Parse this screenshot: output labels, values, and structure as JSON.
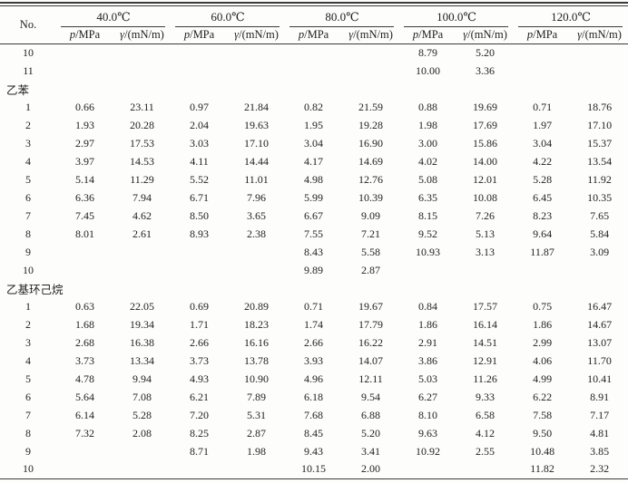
{
  "page": {
    "background": "#fdfdfc",
    "text_color": "#1f1f1f",
    "rule_color": "#3b3b3b"
  },
  "table": {
    "no_header": "No.",
    "temp_groups": [
      "40.0℃",
      "60.0℃",
      "80.0℃",
      "100.0℃",
      "120.0℃"
    ],
    "sub_labels": {
      "p_symbol": "p",
      "p_unit": "/MPa",
      "gamma_symbol": "γ",
      "gamma_unit": "/(mN/m)"
    },
    "rows": [
      {
        "type": "data",
        "no": "10",
        "values": [
          "",
          "",
          "",
          "",
          "",
          "",
          "8.79",
          "5.20",
          "",
          ""
        ]
      },
      {
        "type": "data",
        "no": "11",
        "values": [
          "",
          "",
          "",
          "",
          "",
          "",
          "10.00",
          "3.36",
          "",
          ""
        ]
      },
      {
        "type": "section",
        "label": "乙苯"
      },
      {
        "type": "data",
        "no": "1",
        "values": [
          "0.66",
          "23.11",
          "0.97",
          "21.84",
          "0.82",
          "21.59",
          "0.88",
          "19.69",
          "0.71",
          "18.76"
        ]
      },
      {
        "type": "data",
        "no": "2",
        "values": [
          "1.93",
          "20.28",
          "2.04",
          "19.63",
          "1.95",
          "19.28",
          "1.98",
          "17.69",
          "1.97",
          "17.10"
        ]
      },
      {
        "type": "data",
        "no": "3",
        "values": [
          "2.97",
          "17.53",
          "3.03",
          "17.10",
          "3.04",
          "16.90",
          "3.00",
          "15.86",
          "3.04",
          "15.37"
        ]
      },
      {
        "type": "data",
        "no": "4",
        "values": [
          "3.97",
          "14.53",
          "4.11",
          "14.44",
          "4.17",
          "14.69",
          "4.02",
          "14.00",
          "4.22",
          "13.54"
        ]
      },
      {
        "type": "data",
        "no": "5",
        "values": [
          "5.14",
          "11.29",
          "5.52",
          "11.01",
          "4.98",
          "12.76",
          "5.08",
          "12.01",
          "5.28",
          "11.92"
        ]
      },
      {
        "type": "data",
        "no": "6",
        "values": [
          "6.36",
          "7.94",
          "6.71",
          "7.96",
          "5.99",
          "10.39",
          "6.35",
          "10.08",
          "6.45",
          "10.35"
        ]
      },
      {
        "type": "data",
        "no": "7",
        "values": [
          "7.45",
          "4.62",
          "8.50",
          "3.65",
          "6.67",
          "9.09",
          "8.15",
          "7.26",
          "8.23",
          "7.65"
        ]
      },
      {
        "type": "data",
        "no": "8",
        "values": [
          "8.01",
          "2.61",
          "8.93",
          "2.38",
          "7.55",
          "7.21",
          "9.52",
          "5.13",
          "9.64",
          "5.84"
        ]
      },
      {
        "type": "data",
        "no": "9",
        "values": [
          "",
          "",
          "",
          "",
          "8.43",
          "5.58",
          "10.93",
          "3.13",
          "11.87",
          "3.09"
        ]
      },
      {
        "type": "data",
        "no": "10",
        "values": [
          "",
          "",
          "",
          "",
          "9.89",
          "2.87",
          "",
          "",
          "",
          ""
        ]
      },
      {
        "type": "section",
        "label": "乙基环己烷"
      },
      {
        "type": "data",
        "no": "1",
        "values": [
          "0.63",
          "22.05",
          "0.69",
          "20.89",
          "0.71",
          "19.67",
          "0.84",
          "17.57",
          "0.75",
          "16.47"
        ]
      },
      {
        "type": "data",
        "no": "2",
        "values": [
          "1.68",
          "19.34",
          "1.71",
          "18.23",
          "1.74",
          "17.79",
          "1.86",
          "16.14",
          "1.86",
          "14.67"
        ]
      },
      {
        "type": "data",
        "no": "3",
        "values": [
          "2.68",
          "16.38",
          "2.66",
          "16.16",
          "2.66",
          "16.22",
          "2.91",
          "14.51",
          "2.99",
          "13.07"
        ]
      },
      {
        "type": "data",
        "no": "4",
        "values": [
          "3.73",
          "13.34",
          "3.73",
          "13.78",
          "3.93",
          "14.07",
          "3.86",
          "12.91",
          "4.06",
          "11.70"
        ]
      },
      {
        "type": "data",
        "no": "5",
        "values": [
          "4.78",
          "9.94",
          "4.93",
          "10.90",
          "4.96",
          "12.11",
          "5.03",
          "11.26",
          "4.99",
          "10.41"
        ]
      },
      {
        "type": "data",
        "no": "6",
        "values": [
          "5.64",
          "7.08",
          "6.21",
          "7.89",
          "6.18",
          "9.54",
          "6.27",
          "9.33",
          "6.22",
          "8.91"
        ]
      },
      {
        "type": "data",
        "no": "7",
        "values": [
          "6.14",
          "5.28",
          "7.20",
          "5.31",
          "7.68",
          "6.88",
          "8.10",
          "6.58",
          "7.58",
          "7.17"
        ]
      },
      {
        "type": "data",
        "no": "8",
        "values": [
          "7.32",
          "2.08",
          "8.25",
          "2.87",
          "8.45",
          "5.20",
          "9.63",
          "4.12",
          "9.50",
          "4.81"
        ]
      },
      {
        "type": "data",
        "no": "9",
        "values": [
          "",
          "",
          "8.71",
          "1.98",
          "9.43",
          "3.41",
          "10.92",
          "2.55",
          "10.48",
          "3.85"
        ]
      },
      {
        "type": "data",
        "no": "10",
        "values": [
          "",
          "",
          "",
          "",
          "10.15",
          "2.00",
          "",
          "",
          "11.82",
          "2.32"
        ]
      }
    ]
  }
}
